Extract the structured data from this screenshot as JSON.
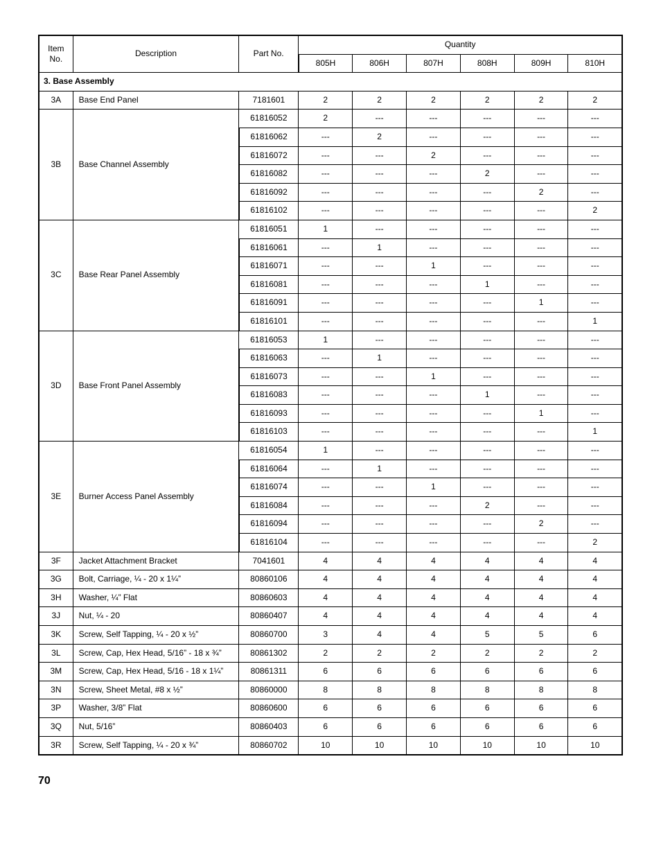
{
  "page_number": "70",
  "table": {
    "header": {
      "item_no": "Item No.",
      "description": "Description",
      "part_no": "Part No.",
      "quantity": "Quantity",
      "models": [
        "805H",
        "806H",
        "807H",
        "808H",
        "809H",
        "810H"
      ]
    },
    "section_title": "3.  Base Assembly",
    "dash": "---",
    "groups": [
      {
        "item": "3A",
        "desc": "Base End Panel",
        "rows": [
          {
            "part": "7181601",
            "q": [
              "2",
              "2",
              "2",
              "2",
              "2",
              "2"
            ]
          }
        ]
      },
      {
        "item": "3B",
        "desc": "Base Channel Assembly",
        "rows": [
          {
            "part": "61816052",
            "q": [
              "2",
              "---",
              "---",
              "---",
              "---",
              "---"
            ]
          },
          {
            "part": "61816062",
            "q": [
              "---",
              "2",
              "---",
              "---",
              "---",
              "---"
            ]
          },
          {
            "part": "61816072",
            "q": [
              "---",
              "---",
              "2",
              "---",
              "---",
              "---"
            ]
          },
          {
            "part": "61816082",
            "q": [
              "---",
              "---",
              "---",
              "2",
              "---",
              "---"
            ]
          },
          {
            "part": "61816092",
            "q": [
              "---",
              "---",
              "---",
              "---",
              "2",
              "---"
            ]
          },
          {
            "part": "61816102",
            "q": [
              "---",
              "---",
              "---",
              "---",
              "---",
              "2"
            ]
          }
        ]
      },
      {
        "item": "3C",
        "desc": "Base Rear Panel Assembly",
        "rows": [
          {
            "part": "61816051",
            "q": [
              "1",
              "---",
              "---",
              "---",
              "---",
              "---"
            ]
          },
          {
            "part": "61816061",
            "q": [
              "---",
              "1",
              "---",
              "---",
              "---",
              "---"
            ]
          },
          {
            "part": "61816071",
            "q": [
              "---",
              "---",
              "1",
              "---",
              "---",
              "---"
            ]
          },
          {
            "part": "61816081",
            "q": [
              "---",
              "---",
              "---",
              "1",
              "---",
              "---"
            ]
          },
          {
            "part": "61816091",
            "q": [
              "---",
              "---",
              "---",
              "---",
              "1",
              "---"
            ]
          },
          {
            "part": "61816101",
            "q": [
              "---",
              "---",
              "---",
              "---",
              "---",
              "1"
            ]
          }
        ]
      },
      {
        "item": "3D",
        "desc": "Base Front Panel Assembly",
        "rows": [
          {
            "part": "61816053",
            "q": [
              "1",
              "---",
              "---",
              "---",
              "---",
              "---"
            ]
          },
          {
            "part": "61816063",
            "q": [
              "---",
              "1",
              "---",
              "---",
              "---",
              "---"
            ]
          },
          {
            "part": "61816073",
            "q": [
              "---",
              "---",
              "1",
              "---",
              "---",
              "---"
            ]
          },
          {
            "part": "61816083",
            "q": [
              "---",
              "---",
              "---",
              "1",
              "---",
              "---"
            ]
          },
          {
            "part": "61816093",
            "q": [
              "---",
              "---",
              "---",
              "---",
              "1",
              "---"
            ]
          },
          {
            "part": "61816103",
            "q": [
              "---",
              "---",
              "---",
              "---",
              "---",
              "1"
            ]
          }
        ]
      },
      {
        "item": "3E",
        "desc": "Burner Access Panel Assembly",
        "rows": [
          {
            "part": "61816054",
            "q": [
              "1",
              "---",
              "---",
              "---",
              "---",
              "---"
            ]
          },
          {
            "part": "61816064",
            "q": [
              "---",
              "1",
              "---",
              "---",
              "---",
              "---"
            ]
          },
          {
            "part": "61816074",
            "q": [
              "---",
              "---",
              "1",
              "---",
              "---",
              "---"
            ]
          },
          {
            "part": "61816084",
            "q": [
              "---",
              "---",
              "---",
              "2",
              "---",
              "---"
            ]
          },
          {
            "part": "61816094",
            "q": [
              "---",
              "---",
              "---",
              "---",
              "2",
              "---"
            ]
          },
          {
            "part": "61816104",
            "q": [
              "---",
              "---",
              "---",
              "---",
              "---",
              "2"
            ]
          }
        ]
      },
      {
        "item": "3F",
        "desc": "Jacket Attachment Bracket",
        "rows": [
          {
            "part": "7041601",
            "q": [
              "4",
              "4",
              "4",
              "4",
              "4",
              "4"
            ]
          }
        ]
      },
      {
        "item": "3G",
        "desc": "Bolt, Carriage, ¼ - 20 x 1¼”",
        "rows": [
          {
            "part": "80860106",
            "q": [
              "4",
              "4",
              "4",
              "4",
              "4",
              "4"
            ]
          }
        ]
      },
      {
        "item": "3H",
        "desc": "Washer, ¼” Flat",
        "rows": [
          {
            "part": "80860603",
            "q": [
              "4",
              "4",
              "4",
              "4",
              "4",
              "4"
            ]
          }
        ]
      },
      {
        "item": "3J",
        "desc": "Nut, ¼ - 20",
        "rows": [
          {
            "part": "80860407",
            "q": [
              "4",
              "4",
              "4",
              "4",
              "4",
              "4"
            ]
          }
        ]
      },
      {
        "item": "3K",
        "desc": "Screw, Self Tapping, ¼ - 20 x ½”",
        "rows": [
          {
            "part": "80860700",
            "q": [
              "3",
              "4",
              "4",
              "5",
              "5",
              "6"
            ]
          }
        ]
      },
      {
        "item": "3L",
        "desc": "Screw, Cap, Hex Head, 5/16” - 18 x ¾”",
        "rows": [
          {
            "part": "80861302",
            "q": [
              "2",
              "2",
              "2",
              "2",
              "2",
              "2"
            ]
          }
        ]
      },
      {
        "item": "3M",
        "desc": "Screw, Cap, Hex Head, 5/16 - 18 x 1¼”",
        "rows": [
          {
            "part": "80861311",
            "q": [
              "6",
              "6",
              "6",
              "6",
              "6",
              "6"
            ]
          }
        ]
      },
      {
        "item": "3N",
        "desc": "Screw, Sheet Metal, #8 x ½”",
        "rows": [
          {
            "part": "80860000",
            "q": [
              "8",
              "8",
              "8",
              "8",
              "8",
              "8"
            ]
          }
        ]
      },
      {
        "item": "3P",
        "desc": "Washer, 3/8” Flat",
        "rows": [
          {
            "part": "80860600",
            "q": [
              "6",
              "6",
              "6",
              "6",
              "6",
              "6"
            ]
          }
        ]
      },
      {
        "item": "3Q",
        "desc": "Nut, 5/16”",
        "rows": [
          {
            "part": "80860403",
            "q": [
              "6",
              "6",
              "6",
              "6",
              "6",
              "6"
            ]
          }
        ]
      },
      {
        "item": "3R",
        "desc": "Screw, Self Tapping, ¼ - 20 x ¾”",
        "rows": [
          {
            "part": "80860702",
            "q": [
              "10",
              "10",
              "10",
              "10",
              "10",
              "10"
            ]
          }
        ]
      }
    ]
  }
}
